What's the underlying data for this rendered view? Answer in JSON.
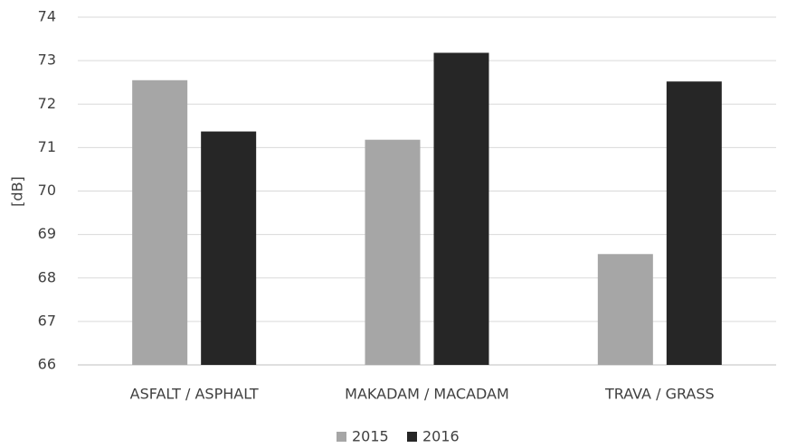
{
  "chart_data": {
    "type": "bar",
    "categories": [
      "ASFALT / ASPHALT",
      "MAKADAM / MACADAM",
      "TRAVA / GRASS"
    ],
    "series": [
      {
        "name": "2015",
        "values": [
          72.55,
          71.18,
          68.55
        ],
        "color": "#a6a6a6"
      },
      {
        "name": "2016",
        "values": [
          71.37,
          73.18,
          72.52
        ],
        "color": "#262626"
      }
    ],
    "title": "",
    "xlabel": "",
    "ylabel": "[dB]",
    "ylim": [
      66,
      74
    ],
    "yticks": [
      "66",
      "67",
      "68",
      "69",
      "70",
      "71",
      "72",
      "73",
      "74"
    ],
    "grid": true,
    "legend": "bottom-center"
  }
}
